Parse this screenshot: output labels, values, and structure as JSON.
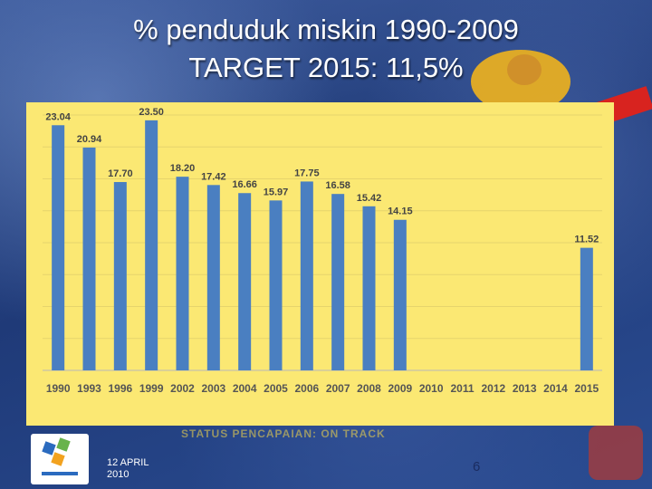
{
  "title_line1": "% penduduk miskin 1990-2009",
  "title_line2": "TARGET 2015: 11,5%",
  "footer": {
    "faded_text": "STATUS PENCAPAIAN: ON TRACK",
    "date_line1": "12 APRIL",
    "date_line2": "2010",
    "page_number": "6"
  },
  "colors": {
    "bar": "#4a7fc1",
    "chart_bg": "#fbe873",
    "title": "#ffffff"
  },
  "chart_data": {
    "type": "bar",
    "categories": [
      "1990",
      "1993",
      "1996",
      "1999",
      "2002",
      "2003",
      "2004",
      "2005",
      "2006",
      "2007",
      "2008",
      "2009",
      "2010",
      "2011",
      "2012",
      "2013",
      "2014",
      "2015"
    ],
    "values": [
      23.04,
      20.94,
      17.7,
      23.5,
      18.2,
      17.42,
      16.66,
      15.97,
      17.75,
      16.58,
      15.42,
      14.15,
      null,
      null,
      null,
      null,
      null,
      11.52
    ],
    "labels": [
      "23.04",
      "20.94",
      "17.70",
      "23.50",
      "18.20",
      "17.42",
      "16.66",
      "15.97",
      "17.75",
      "16.58",
      "15.42",
      "14.15",
      "",
      "",
      "",
      "",
      "",
      "11.52"
    ],
    "ylim": [
      0,
      24
    ],
    "grid": true,
    "legend": "none"
  }
}
